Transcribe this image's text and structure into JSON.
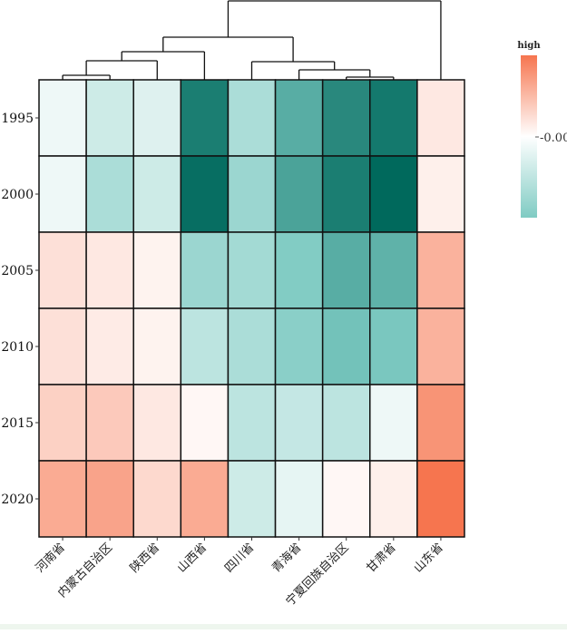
{
  "chart_data": {
    "type": "heatmap",
    "columns": [
      "河南省",
      "内蒙古自治区",
      "陕西省",
      "山西省",
      "四川省",
      "青海省",
      "宁夏回族自治区",
      "甘肃省",
      "山东省"
    ],
    "rows": [
      "1995",
      "2000",
      "2005",
      "2010",
      "2015",
      "2020"
    ],
    "values": [
      [
        -0.1,
        -0.3,
        -0.2,
        -1.5,
        -0.5,
        -1.05,
        -1.4,
        -1.55,
        0.15
      ],
      [
        -0.1,
        -0.5,
        -0.3,
        -1.65,
        -0.6,
        -1.15,
        -1.5,
        -1.7,
        0.1
      ],
      [
        0.2,
        0.15,
        0.08,
        -0.6,
        -0.55,
        -0.75,
        -1.05,
        -1.0,
        0.5
      ],
      [
        0.2,
        0.13,
        0.08,
        -0.4,
        -0.5,
        -0.7,
        -0.85,
        -0.8,
        0.5
      ],
      [
        0.3,
        0.35,
        0.15,
        0.05,
        -0.4,
        -0.35,
        -0.4,
        -0.1,
        0.7
      ],
      [
        0.55,
        0.6,
        0.25,
        0.55,
        -0.3,
        -0.15,
        0.05,
        0.1,
        0.9
      ]
    ],
    "legend": {
      "title": "high",
      "tick_label": "-0.00",
      "low_color": "#7fcbc3",
      "mid_color": "#ffffff",
      "high_color": "#f6754f",
      "placement": "top-right"
    },
    "dendrogram": "column"
  }
}
